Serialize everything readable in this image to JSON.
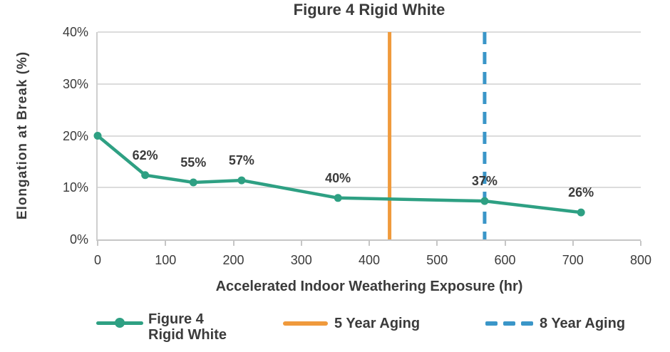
{
  "chart_data": {
    "type": "line",
    "title": "Figure 4 Rigid White",
    "xlabel": "Accelerated Indoor Weathering Exposure (hr)",
    "ylabel": "Elongation at Break (%)",
    "xlim": [
      0,
      800
    ],
    "ylim": [
      0,
      40
    ],
    "x_ticks": [
      0,
      100,
      200,
      300,
      400,
      500,
      600,
      700,
      800
    ],
    "y_ticks": [
      0,
      10,
      20,
      30,
      40
    ],
    "y_tick_suffix": "%",
    "grid": "horizontal",
    "legend_position": "bottom",
    "background": "#ffffff",
    "grid_color": "#dcdcdc",
    "text_color": "#3b3b3b",
    "series": [
      {
        "name": "Figure 4 Rigid White",
        "color": "#2EA083",
        "marker": "circle",
        "line_style": "solid",
        "x": [
          0,
          70,
          141,
          212,
          354,
          570,
          712
        ],
        "y": [
          20,
          12.4,
          11.0,
          11.4,
          8.0,
          7.4,
          5.2
        ],
        "point_labels": [
          "",
          "62%",
          "55%",
          "57%",
          "40%",
          "37%",
          "26%"
        ]
      }
    ],
    "vlines": [
      {
        "name": "5 Year Aging",
        "x": 430,
        "color": "#F09A3C",
        "style": "solid"
      },
      {
        "name": "8 Year Aging",
        "x": 570,
        "color": "#3A96C8",
        "style": "dashed"
      }
    ]
  },
  "legend": {
    "series": {
      "line1": "Figure 4",
      "line2": "Rigid White"
    },
    "vline_5yr_label": "5 Year Aging",
    "vline_8yr_label": "8 Year Aging"
  }
}
